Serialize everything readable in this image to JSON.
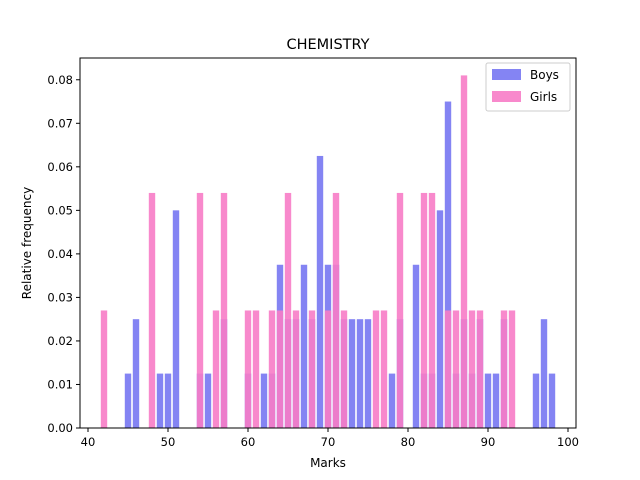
{
  "chart_data": {
    "type": "bar",
    "title": "CHEMISTRY",
    "xlabel": "Marks",
    "ylabel": "Relative frequency",
    "xlim": [
      39,
      101
    ],
    "ylim": [
      0,
      0.085
    ],
    "xticks": [
      40,
      50,
      60,
      70,
      80,
      90,
      100
    ],
    "yticks": [
      0.0,
      0.01,
      0.02,
      0.03,
      0.04,
      0.05,
      0.06,
      0.07,
      0.08
    ],
    "grid": false,
    "legend_position": "top-right",
    "series": [
      {
        "name": "Boys",
        "color": "#7777f2",
        "points": [
          [
            45,
            0.0125
          ],
          [
            46,
            0.025
          ],
          [
            49,
            0.0125
          ],
          [
            50,
            0.0125
          ],
          [
            51,
            0.05
          ],
          [
            54,
            0.0125
          ],
          [
            55,
            0.0125
          ],
          [
            57,
            0.025
          ],
          [
            60,
            0.0125
          ],
          [
            62,
            0.0125
          ],
          [
            63,
            0.0125
          ],
          [
            64,
            0.0375
          ],
          [
            65,
            0.025
          ],
          [
            66,
            0.025
          ],
          [
            67,
            0.0375
          ],
          [
            68,
            0.025
          ],
          [
            69,
            0.0625
          ],
          [
            70,
            0.0375
          ],
          [
            71,
            0.0375
          ],
          [
            72,
            0.025
          ],
          [
            73,
            0.025
          ],
          [
            74,
            0.025
          ],
          [
            75,
            0.025
          ],
          [
            78,
            0.0125
          ],
          [
            79,
            0.025
          ],
          [
            81,
            0.0375
          ],
          [
            82,
            0.0125
          ],
          [
            83,
            0.0125
          ],
          [
            84,
            0.05
          ],
          [
            85,
            0.075
          ],
          [
            86,
            0.0125
          ],
          [
            87,
            0.025
          ],
          [
            88,
            0.0125
          ],
          [
            89,
            0.025
          ],
          [
            90,
            0.0125
          ],
          [
            91,
            0.0125
          ],
          [
            92,
            0.025
          ],
          [
            96,
            0.0125
          ],
          [
            97,
            0.025
          ],
          [
            98,
            0.0125
          ]
        ]
      },
      {
        "name": "Girls",
        "color": "#f77cc6",
        "points": [
          [
            42,
            0.027
          ],
          [
            48,
            0.054
          ],
          [
            54,
            0.054
          ],
          [
            56,
            0.027
          ],
          [
            57,
            0.054
          ],
          [
            60,
            0.027
          ],
          [
            61,
            0.027
          ],
          [
            63,
            0.027
          ],
          [
            64,
            0.027
          ],
          [
            65,
            0.054
          ],
          [
            66,
            0.027
          ],
          [
            68,
            0.027
          ],
          [
            70,
            0.027
          ],
          [
            71,
            0.054
          ],
          [
            72,
            0.027
          ],
          [
            76,
            0.027
          ],
          [
            77,
            0.027
          ],
          [
            79,
            0.054
          ],
          [
            82,
            0.054
          ],
          [
            83,
            0.054
          ],
          [
            85,
            0.027
          ],
          [
            86,
            0.027
          ],
          [
            87,
            0.081
          ],
          [
            88,
            0.027
          ],
          [
            89,
            0.027
          ],
          [
            92,
            0.027
          ],
          [
            93,
            0.027
          ]
        ]
      }
    ]
  }
}
